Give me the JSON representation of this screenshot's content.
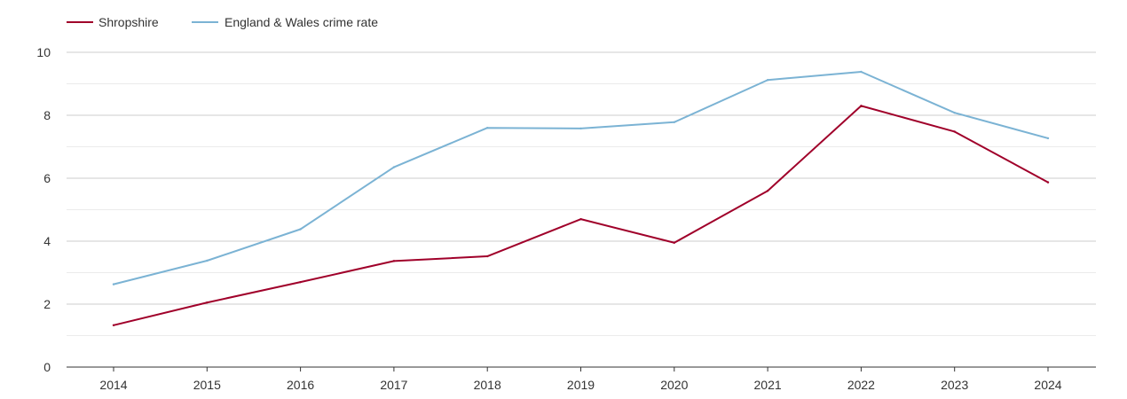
{
  "chart_data": {
    "type": "line",
    "title": "",
    "xlabel": "",
    "ylabel": "",
    "categories": [
      "2014",
      "2015",
      "2016",
      "2017",
      "2018",
      "2019",
      "2020",
      "2021",
      "2022",
      "2023",
      "2024"
    ],
    "ylim": [
      0,
      10
    ],
    "y_ticks": [
      0,
      2,
      4,
      6,
      8,
      10
    ],
    "y_tick_labels": [
      "0",
      "2",
      "4",
      "6",
      "8",
      "10"
    ],
    "grid": true,
    "legend_position": "top-left",
    "series": [
      {
        "name": "Shropshire",
        "color": "#a0002a",
        "values": [
          1.33,
          2.05,
          2.7,
          3.37,
          3.52,
          4.7,
          3.95,
          5.6,
          8.3,
          7.48,
          5.87
        ]
      },
      {
        "name": "England & Wales crime rate",
        "color": "#7bb3d4",
        "values": [
          2.63,
          3.38,
          4.38,
          6.35,
          7.6,
          7.58,
          7.78,
          9.12,
          9.38,
          8.08,
          7.27
        ]
      }
    ]
  },
  "colors": {
    "major_grid": "#cccccc",
    "minor_grid": "#ebebeb",
    "axis": "#333333",
    "text": "#333333"
  }
}
